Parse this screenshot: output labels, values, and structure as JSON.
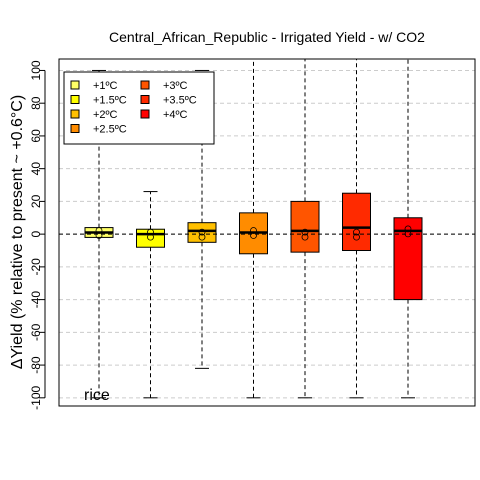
{
  "chart_data": {
    "type": "box",
    "title": "Central_African_Republic - Irrigated Yield - w/ CO2",
    "ylabel": "ΔYield (% relative to present ~ +0.6°C)",
    "xlabel": "",
    "annotation": "rice",
    "ylim": [
      -105,
      107
    ],
    "yticks": [
      -100,
      -80,
      -60,
      -40,
      -20,
      0,
      20,
      40,
      60,
      80,
      100
    ],
    "grid": "horizontal dashed",
    "legend_position": "top-left",
    "series": [
      {
        "name": "+1ºC",
        "color": "#FFFF66",
        "whisker_low": -100,
        "q1": -2,
        "median": 1,
        "q3": 4,
        "whisker_high": 100,
        "mean": 1
      },
      {
        "name": "+1.5ºC",
        "color": "#FFFF00",
        "whisker_low": -100,
        "q1": -8,
        "median": 0,
        "q3": 3,
        "whisker_high": 26,
        "mean": 0
      },
      {
        "name": "+2ºC",
        "color": "#FFC000",
        "whisker_low": -82,
        "q1": -5,
        "median": 2,
        "q3": 7,
        "whisker_high": 100,
        "mean": 0
      },
      {
        "name": "+2.5ºC",
        "color": "#FF8C00",
        "whisker_low": -100,
        "q1": -12,
        "median": 1,
        "q3": 13,
        "whisker_high": 107,
        "mean": 1
      },
      {
        "name": "+3ºC",
        "color": "#FF5500",
        "whisker_low": -100,
        "q1": -11,
        "median": 2,
        "q3": 20,
        "whisker_high": 107,
        "mean": 0
      },
      {
        "name": "+3.5ºC",
        "color": "#FF2A00",
        "whisker_low": -100,
        "q1": -10,
        "median": 4,
        "q3": 25,
        "whisker_high": 107,
        "mean": 0
      },
      {
        "name": "+4ºC",
        "color": "#FF0000",
        "whisker_low": -100,
        "q1": -40,
        "median": 2,
        "q3": 10,
        "whisker_high": 107,
        "mean": 2
      }
    ]
  }
}
